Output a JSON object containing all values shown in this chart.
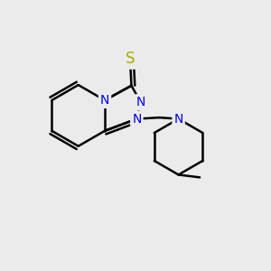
{
  "background_color": "#ebebeb",
  "atom_colors": {
    "N": "#0000ee",
    "S": "#aaaa00",
    "C": "#000000"
  },
  "bond_color": "#000000",
  "bond_width": 1.8,
  "font_size_atom": 10
}
